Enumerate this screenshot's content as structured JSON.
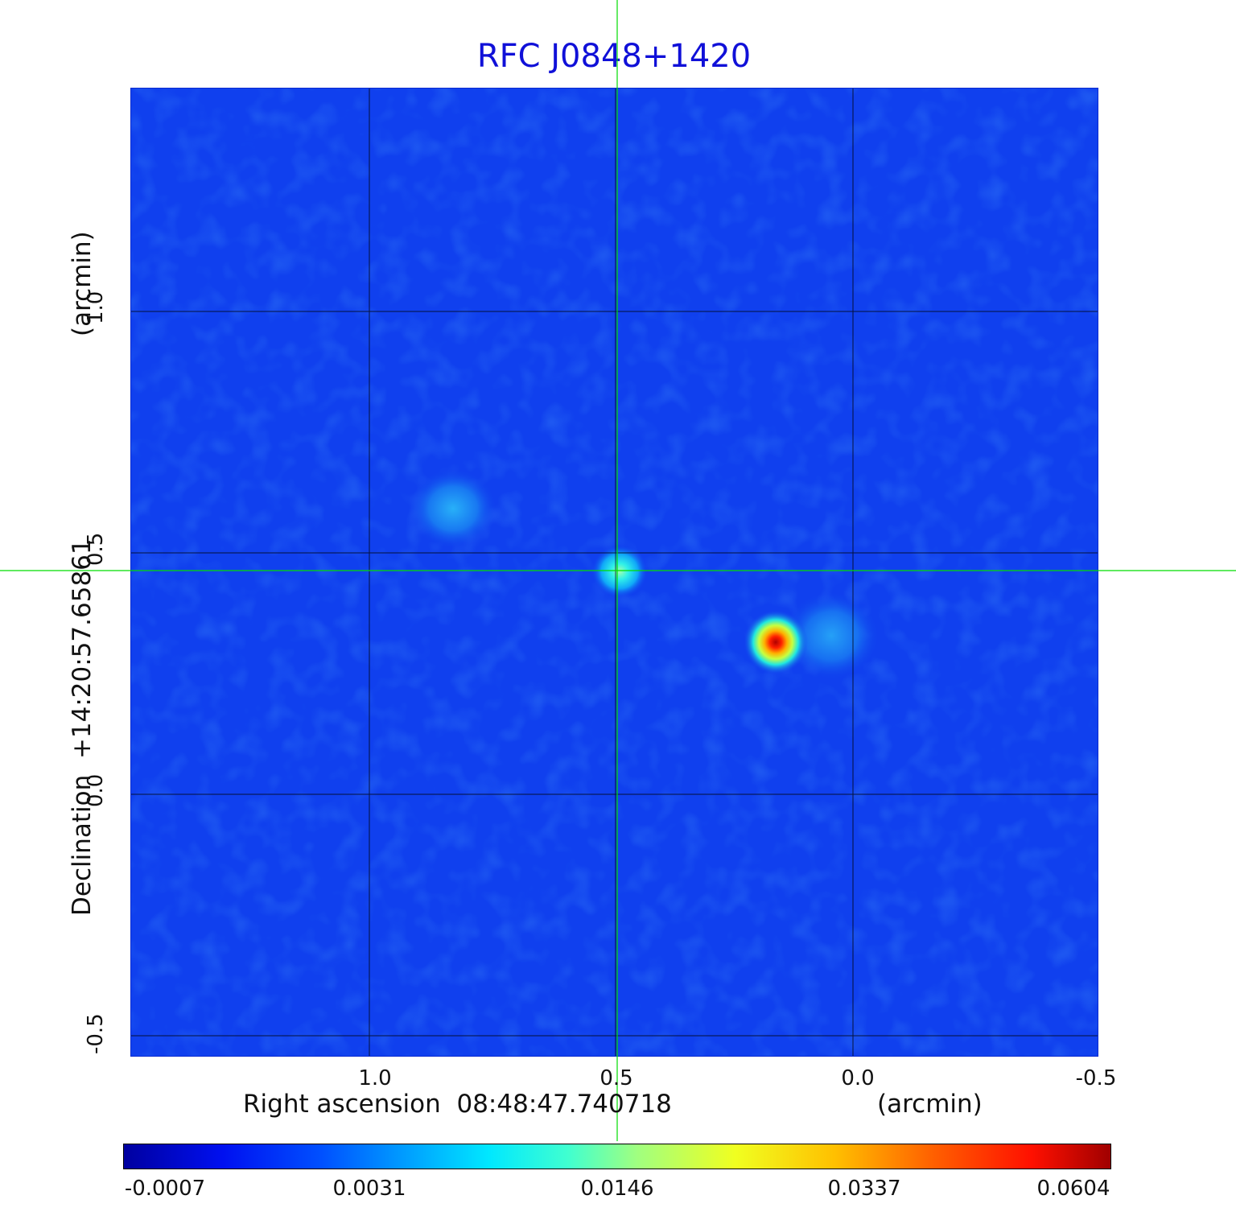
{
  "title": "RFC J0848+1420",
  "x_axis": {
    "label": "Right ascension  08:48:47.740718",
    "unit": "(arcmin)",
    "ticks": [
      "1.0",
      "0.5",
      "0.0",
      "-0.5"
    ]
  },
  "y_axis": {
    "label": "Declination  +14:20:57.65861",
    "unit": "(arcmin)",
    "ticks": [
      "1.0",
      "0.5",
      "0.0",
      "-0.5"
    ]
  },
  "colorbar": {
    "ticks": [
      "-0.0007",
      "0.0031",
      "0.0146",
      "0.0337",
      "0.0604"
    ],
    "colormap": "jet"
  },
  "colors": {
    "background_field": "#1040ee",
    "crosshair": "#00dd00",
    "title": "#1010d8"
  }
}
